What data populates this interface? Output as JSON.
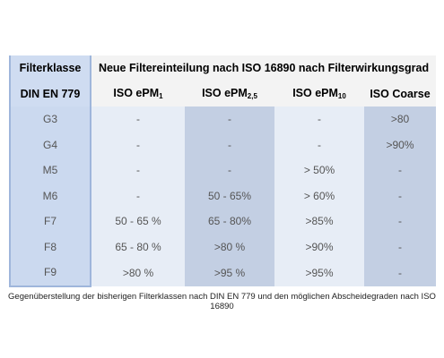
{
  "table": {
    "header": {
      "first_top": "Filterklasse",
      "first_bottom": "DIN EN 779",
      "title": "Neue Filtereinteilung nach ISO 16890 nach Filterwirkungsgrad",
      "columns": [
        {
          "text": "ISO ePM",
          "sub": "1"
        },
        {
          "text": "ISO ePM",
          "sub": "2,5"
        },
        {
          "text": "ISO ePM",
          "sub": "10"
        },
        {
          "text": "ISO Coarse"
        }
      ]
    },
    "rows": [
      [
        "G3",
        "-",
        "-",
        "-",
        ">80"
      ],
      [
        "G4",
        "-",
        "-",
        "-",
        ">90%"
      ],
      [
        "M5",
        "-",
        "-",
        "> 50%",
        "-"
      ],
      [
        "M6",
        "-",
        "50 - 65%",
        "> 60%",
        "-"
      ],
      [
        "F7",
        "50 - 65 %",
        "65 - 80%",
        ">85%",
        "-"
      ],
      [
        "F8",
        "65 - 80 %",
        ">80 %",
        ">90%",
        "-"
      ],
      [
        "F9",
        ">80 %",
        ">95 %",
        ">95%",
        "-"
      ]
    ]
  },
  "caption": "Gegenüberstellung der bisherigen Filterklassen nach DIN EN 779 und den möglichen Abscheidegraden nach ISO 16890"
}
